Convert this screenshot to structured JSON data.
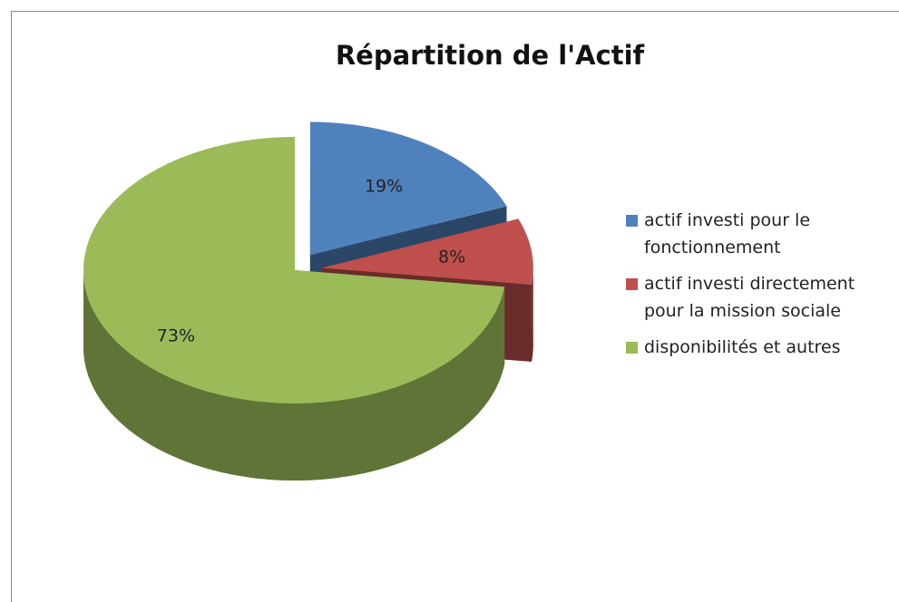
{
  "chart_data": {
    "type": "pie",
    "title": "Répartition de l'Actif",
    "categories": [
      "actif investi pour le fonctionnement",
      "actif investi directement pour la mission sociale",
      "disponibilités et autres"
    ],
    "values": [
      19,
      8,
      73
    ],
    "value_labels": [
      "19%",
      "8%",
      "73%"
    ],
    "colors": [
      "#4f81bd",
      "#c0504d",
      "#9bbb59"
    ],
    "legend": "right"
  }
}
